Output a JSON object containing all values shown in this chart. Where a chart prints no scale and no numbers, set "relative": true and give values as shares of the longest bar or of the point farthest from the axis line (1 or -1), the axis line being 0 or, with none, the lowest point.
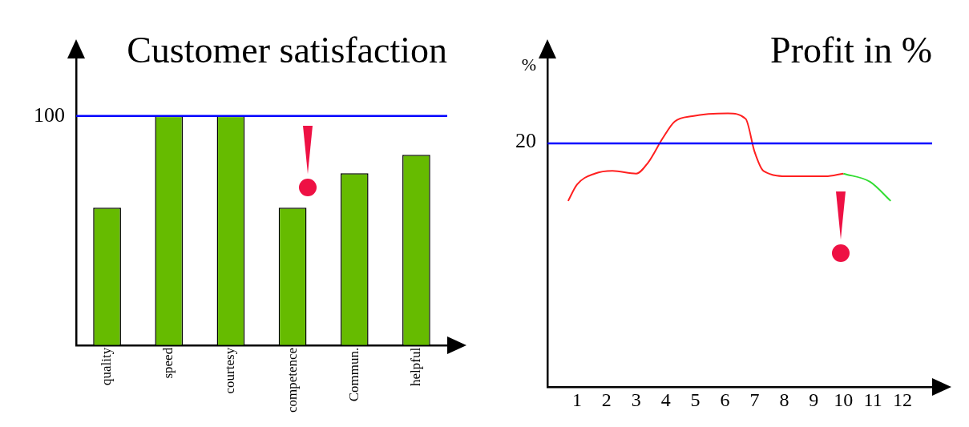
{
  "chart_data": [
    {
      "type": "bar",
      "title": "Customer satisfaction",
      "ylim": [
        0,
        125
      ],
      "yticks": [
        100
      ],
      "categories": [
        "quality",
        "speed",
        "courtesy",
        "competence",
        "Commun.",
        "helpful"
      ],
      "series": [
        {
          "color": "#66bb00",
          "values": [
            60,
            100,
            100,
            60,
            75,
            83
          ]
        }
      ],
      "ref_lines": [
        {
          "axis": "y",
          "value": 100,
          "color": "#0000ff"
        }
      ],
      "grid": false,
      "legend": false
    },
    {
      "type": "line",
      "title": "Profit in %",
      "ylabel": "%",
      "relative": true,
      "xlim": [
        0,
        13
      ],
      "xticks": [
        1,
        2,
        3,
        4,
        5,
        6,
        7,
        8,
        9,
        10,
        11,
        12
      ],
      "annotations": [
        "20"
      ],
      "series": [
        {
          "color": "#ff2020",
          "x": [
            0.7,
            1,
            1.6,
            2.2,
            3,
            3.4,
            3.9,
            4.3,
            4.9,
            6.1,
            6.7,
            7,
            7.3,
            8.2,
            9.4,
            10
          ],
          "values": [
            0.68,
            0.74,
            0.78,
            0.79,
            0.78,
            0.82,
            0.91,
            0.97,
            0.99,
            1,
            0.98,
            0.86,
            0.79,
            0.77,
            0.77,
            0.78
          ]
        },
        {
          "color": "#33dd33",
          "x": [
            10,
            10.9,
            11.6
          ],
          "values": [
            0.78,
            0.75,
            0.68
          ]
        }
      ],
      "ref_lines": [
        {
          "axis": "y",
          "value": 0.89,
          "color": "#0000ff"
        }
      ],
      "grid": false,
      "legend": false,
      "marker": "none"
    }
  ]
}
